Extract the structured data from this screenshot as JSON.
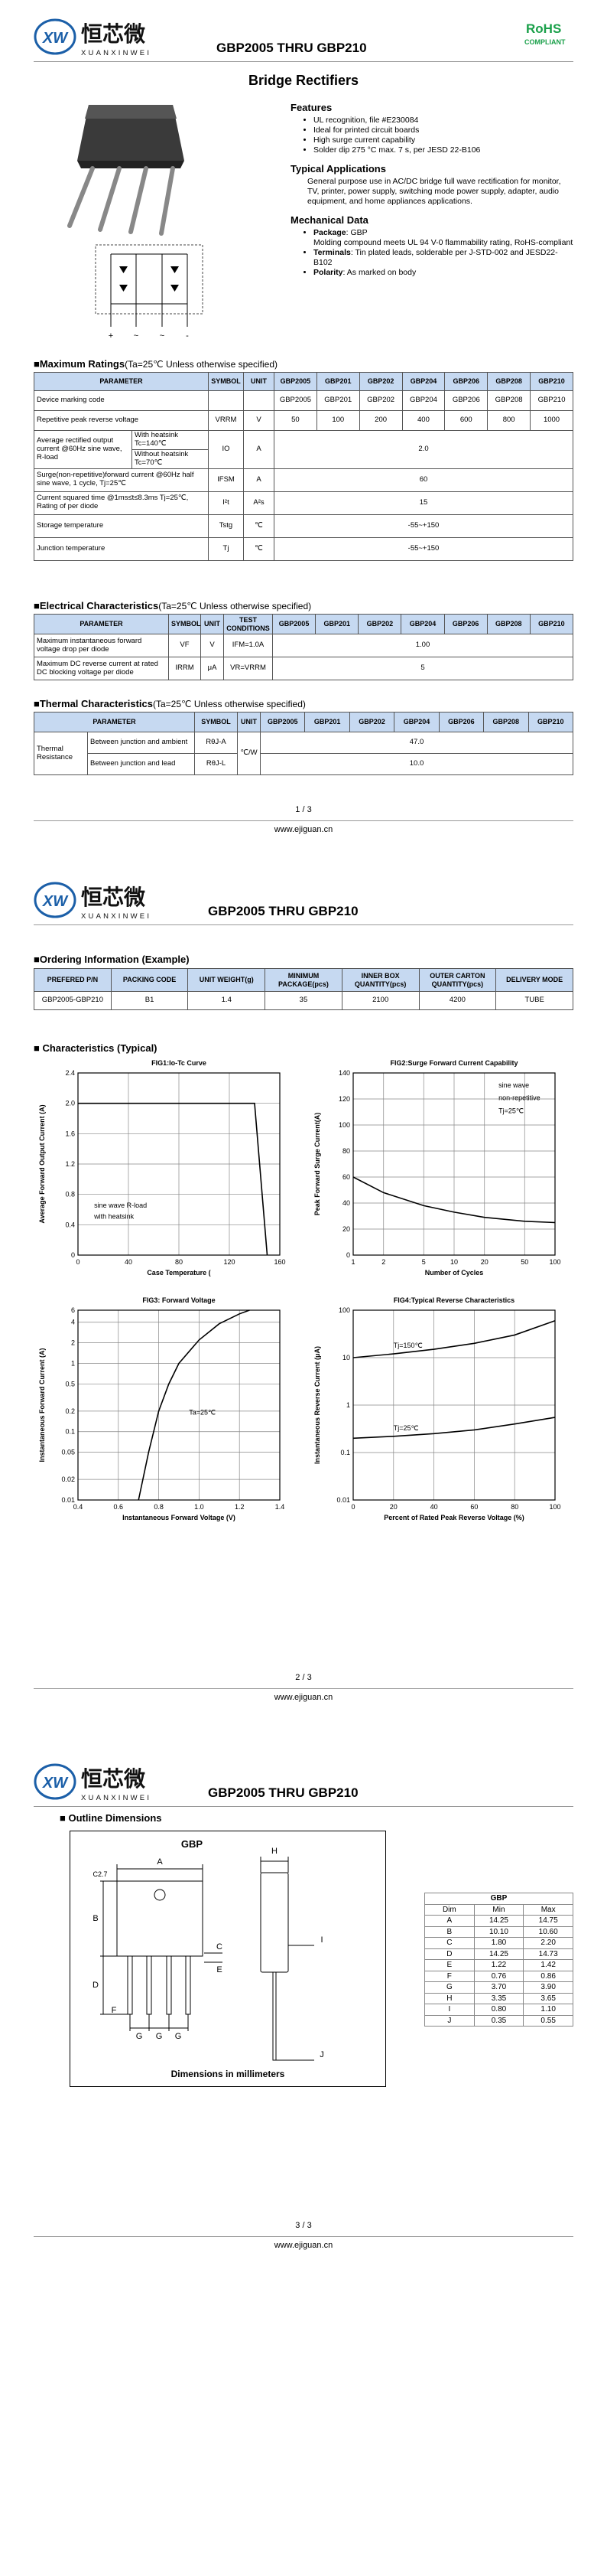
{
  "header": {
    "logo_mark": "XW",
    "logo_cn": "恒芯微",
    "logo_en": "XUANXINWEI",
    "title": "GBP2005 THRU GBP210",
    "rohs": "RoHS",
    "compliant": "COMPLIANT"
  },
  "product_title": "Bridge Rectifiers",
  "circuit": {
    "terminals": [
      "+",
      "~",
      "~",
      "-"
    ]
  },
  "features": {
    "heading": "Features",
    "items": [
      "UL recognition, file #E230084",
      "Ideal for printed circuit boards",
      "High surge current capability",
      "Solder dip 275 °C max. 7 s, per JESD 22-B106"
    ]
  },
  "applications": {
    "heading": "Typical Applications",
    "text": "General purpose use in AC/DC bridge full wave rectification for monitor, TV, printer, power supply, switching mode power supply, adapter, audio equipment, and home appliances applications."
  },
  "mechanical": {
    "heading": "Mechanical Data",
    "items": [
      {
        "label": "Package",
        "text": ": GBP"
      },
      {
        "text": "Molding compound meets UL 94 V-0 flammability rating, RoHS-compliant"
      },
      {
        "label": "Terminals",
        "text": ": Tin plated leads, solderable per J-STD-002 and JESD22-B102"
      },
      {
        "label": "Polarity",
        "text": ": As marked on body"
      }
    ]
  },
  "models": [
    "GBP2005",
    "GBP201",
    "GBP202",
    "GBP204",
    "GBP206",
    "GBP208",
    "GBP210"
  ],
  "max_ratings": {
    "heading": "■Maximum Ratings",
    "condition": "(Ta=25℃ Unless otherwise specified)",
    "header": [
      "PARAMETER",
      "SYMBOL",
      "UNIT"
    ],
    "rows": [
      [
        "Device marking code",
        "GBP2005",
        "GBP201",
        "GBP202",
        "GBP204",
        "GBP206",
        "GBP208",
        "GBP210"
      ],
      [
        "Repetitive peak reverse voltage",
        "VRRM",
        "V",
        "50",
        "100",
        "200",
        "400",
        "600",
        "800",
        "1000"
      ],
      [
        "Average rectified output current @60Hz sine wave, R-load",
        "With heatsink Tc=140℃",
        "IO",
        "A",
        "2.0"
      ],
      [
        "Without heatsink Tc=70℃"
      ],
      [
        "Surge(non-repetitive)forward current @60Hz half sine wave, 1 cycle, Tj=25℃",
        "IFSM",
        "A",
        "60"
      ],
      [
        "Current squared time @1ms≤t≤8.3ms Tj=25℃, Rating of per diode",
        "I²t",
        "A²s",
        "15"
      ],
      [
        "Storage temperature",
        "Tstg",
        "℃",
        "-55~+150"
      ],
      [
        "Junction temperature",
        "Tj",
        "℃",
        "-55~+150"
      ]
    ]
  },
  "electrical": {
    "heading": "■Electrical Characteristics",
    "condition": "(Ta=25℃ Unless otherwise specified)",
    "header": [
      "PARAMETER",
      "SYMBOL",
      "UNIT",
      "TEST CONDITIONS"
    ],
    "rows": [
      [
        "Maximum instantaneous forward voltage drop per diode",
        "VF",
        "V",
        "IFM=1.0A",
        "1.00"
      ],
      [
        "Maximum DC reverse current at rated DC blocking voltage per diode",
        "IRRM",
        "μA",
        "VR=VRRM",
        "5"
      ]
    ]
  },
  "thermal": {
    "heading": "■Thermal Characteristics",
    "condition": "(Ta=25℃ Unless otherwise specified)",
    "header": [
      "PARAMETER",
      "SYMBOL",
      "UNIT"
    ],
    "rows": [
      [
        "Thermal Resistance",
        "Between junction and ambient",
        "RθJ-A",
        "℃/W",
        "47.0"
      ],
      [
        "Between junction and lead",
        "RθJ-L",
        "10.0"
      ]
    ]
  },
  "ordering": {
    "heading": "■Ordering Information (Example)",
    "header": [
      "PREFERED P/N",
      "PACKING CODE",
      "UNIT WEIGHT(g)",
      "MINIMUM PACKAGE(pcs)",
      "INNER BOX QUANTITY(pcs)",
      "OUTER CARTON QUANTITY(pcs)",
      "DELIVERY MODE"
    ],
    "row": [
      "GBP2005-GBP210",
      "B1",
      "1.4",
      "35",
      "2100",
      "4200",
      "TUBE"
    ]
  },
  "characteristics_heading": "■ Characteristics (Typical)",
  "chart_data": [
    {
      "type": "line",
      "title": "FIG1:Io-Tc Curve",
      "xlabel": "Case Temperature (",
      "ylabel": "Average Forward Output Current (A)",
      "xlim": [
        0,
        160
      ],
      "ylim": [
        0,
        2.4
      ],
      "xticks": [
        0,
        40,
        80,
        120,
        160
      ],
      "yticks": [
        0,
        0.4,
        0.8,
        1.2,
        1.6,
        {
          "value": 2,
          "label": "2.0"
        },
        2.4
      ],
      "grid": true,
      "annotations": [
        "sine wave R-load",
        "with heatsink"
      ],
      "series": [
        {
          "color": "#000000",
          "x": [
            0,
            140,
            150
          ],
          "values": [
            2,
            2,
            0
          ]
        }
      ]
    },
    {
      "type": "line",
      "title": "FIG2:Surge Forward Current Capability",
      "xlabel": "Number of Cycles",
      "ylabel": "Peak Forward Surge Current(A)",
      "xscale": "log",
      "xlim": [
        1,
        100
      ],
      "ylim": [
        0,
        140
      ],
      "xticks": [
        1,
        2,
        5,
        10,
        20,
        50,
        100
      ],
      "yticks": [
        0,
        20,
        40,
        60,
        80,
        100,
        120,
        140
      ],
      "grid": true,
      "annotations": [
        "sine wave",
        "non-repetitive",
        "Tj=25℃"
      ],
      "series": [
        {
          "color": "#000000",
          "x": [
            1,
            2,
            5,
            10,
            20,
            50,
            100
          ],
          "values": [
            60,
            48,
            38,
            33,
            29,
            26,
            25
          ]
        }
      ]
    },
    {
      "type": "line",
      "title": "FIG3: Forward Voltage",
      "xlabel": "Instantaneous Forward Voltage (V)",
      "ylabel": "Instantaneous Forward Current (A)",
      "yscale": "log",
      "xlim": [
        0.4,
        1.4
      ],
      "ylim": [
        0.01,
        6
      ],
      "xticks": [
        0.4,
        0.6,
        0.8,
        {
          "value": 1,
          "label": "1.0"
        },
        1.2,
        1.4
      ],
      "yticks": [
        0.01,
        0.02,
        0.05,
        0.1,
        0.2,
        0.5,
        1,
        2,
        4,
        6
      ],
      "grid": true,
      "annotations": [
        "Ta=25℃"
      ],
      "series": [
        {
          "color": "#000000",
          "x": [
            0.7,
            0.75,
            0.8,
            0.85,
            0.9,
            1,
            1.1,
            1.2,
            1.25
          ],
          "values": [
            0.01,
            0.05,
            0.2,
            0.5,
            1,
            2.2,
            3.8,
            5.3,
            6
          ]
        }
      ]
    },
    {
      "type": "line",
      "title": "FIG4:Typical Reverse Characteristics",
      "xlabel": "Percent of Rated Peak Reverse Voltage  (%)",
      "ylabel": "Instantaneous Reverse Current (μA)",
      "yscale": "log",
      "xlim": [
        0,
        100
      ],
      "ylim": [
        0.01,
        100
      ],
      "xticks": [
        0,
        20,
        40,
        60,
        80,
        100
      ],
      "yticks": [
        0.01,
        0.1,
        1,
        10,
        100
      ],
      "grid": true,
      "series": [
        {
          "name": "Tj=150℃",
          "color": "#000000",
          "x": [
            0,
            20,
            40,
            60,
            80,
            100
          ],
          "values": [
            10,
            12,
            15,
            20,
            30,
            60
          ]
        },
        {
          "name": "Tj=25℃",
          "color": "#000000",
          "x": [
            0,
            20,
            40,
            60,
            80,
            100
          ],
          "values": [
            0.2,
            0.22,
            0.25,
            0.3,
            0.4,
            0.55
          ]
        }
      ]
    }
  ],
  "outline": {
    "heading": "■ Outline Dimensions",
    "package": "GBP",
    "caption": "Dimensions in millimeters",
    "labels": [
      "A",
      "B",
      "C2.7",
      "D",
      "C",
      "E",
      "F",
      "G",
      "G",
      "G",
      "H",
      "I",
      "J"
    ]
  },
  "dimensions": {
    "title": "GBP",
    "header": [
      "Dim",
      "Min",
      "Max"
    ],
    "rows": [
      [
        "A",
        "14.25",
        "14.75"
      ],
      [
        "B",
        "10.10",
        "10.60"
      ],
      [
        "C",
        "1.80",
        "2.20"
      ],
      [
        "D",
        "14.25",
        "14.73"
      ],
      [
        "E",
        "1.22",
        "1.42"
      ],
      [
        "F",
        "0.76",
        "0.86"
      ],
      [
        "G",
        "3.70",
        "3.90"
      ],
      [
        "H",
        "3.35",
        "3.65"
      ],
      [
        "I",
        "0.80",
        "1.10"
      ],
      [
        "J",
        "0.35",
        "0.55"
      ]
    ]
  },
  "footers": [
    {
      "page": "1 / 3",
      "url": "www.ejiguan.cn"
    },
    {
      "page": "2 / 3",
      "url": "www.ejiguan.cn"
    },
    {
      "page": "3 / 3",
      "url": "www.ejiguan.cn"
    }
  ]
}
